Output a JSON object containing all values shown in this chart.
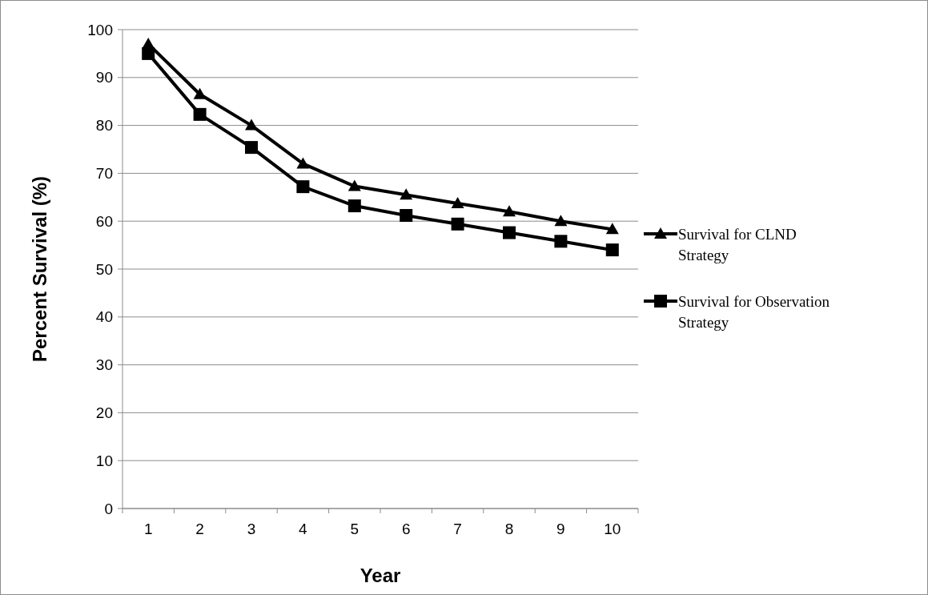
{
  "chart_data": {
    "type": "line",
    "xlabel": "Year",
    "ylabel": "Percent Survival (%)",
    "categories": [
      "1",
      "2",
      "3",
      "4",
      "5",
      "6",
      "7",
      "8",
      "9",
      "10"
    ],
    "series": [
      {
        "name": "Survival for CLND Strategy",
        "color": "#000000",
        "marker": "triangle",
        "values": [
          97,
          86.5,
          80,
          72,
          67.3,
          65.5,
          63.7,
          62,
          60,
          58.3
        ]
      },
      {
        "name": "Survival for Observation Strategy",
        "color": "#000000",
        "marker": "square",
        "values": [
          95,
          82.3,
          75.4,
          67.2,
          63.2,
          61.2,
          59.4,
          57.6,
          55.8,
          54
        ]
      }
    ],
    "ylim": [
      0,
      100
    ],
    "yticks": [
      0,
      10,
      20,
      30,
      40,
      50,
      60,
      70,
      80,
      90,
      100
    ],
    "grid": "y",
    "legend": "right",
    "line_style": "solid"
  }
}
